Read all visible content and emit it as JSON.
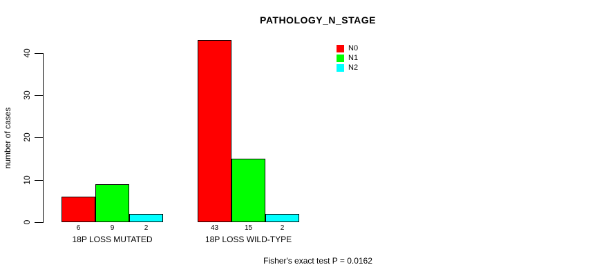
{
  "chart_data": {
    "type": "bar",
    "title": "PATHOLOGY_N_STAGE",
    "ylabel": "number of cases",
    "xlabel": "",
    "categories": [
      "18P LOSS MUTATED",
      "18P LOSS WILD-TYPE"
    ],
    "series": [
      {
        "name": "N0",
        "color": "#FF0000",
        "values": [
          6,
          43
        ]
      },
      {
        "name": "N1",
        "color": "#00FF00",
        "values": [
          9,
          15
        ]
      },
      {
        "name": "N2",
        "color": "#00FFFF",
        "values": [
          2,
          2
        ]
      }
    ],
    "bar_value_labels": [
      [
        "6",
        "9",
        "2"
      ],
      [
        "43",
        "15",
        "2"
      ]
    ],
    "yticks": [
      "0",
      "10",
      "20",
      "30",
      "40"
    ],
    "ylim": [
      0,
      43
    ],
    "grid": false,
    "legend_position": "top-right",
    "legend_entries": [
      {
        "label": "N0",
        "color": "#FF0000"
      },
      {
        "label": "N1",
        "color": "#00FF00"
      },
      {
        "label": "N2",
        "color": "#00FFFF"
      }
    ],
    "annotation": "Fisher's exact test P = 0.0162",
    "bar_border_color": "#000000",
    "axis_color": "#000000",
    "text_color": "#000000",
    "background_color": "#FFFFFF"
  }
}
